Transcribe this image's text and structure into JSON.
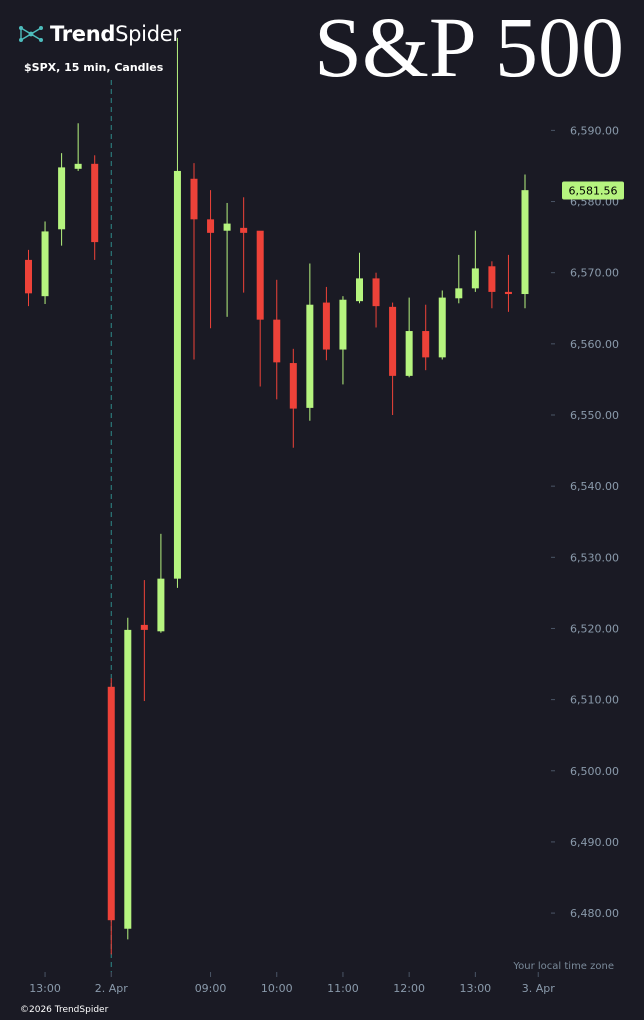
{
  "brand": {
    "name_bold": "Trend",
    "name_regular": "Spider",
    "logo_icon": "trendspider-network-icon"
  },
  "title": "S&P 500",
  "subtitle": "$SPX, 15 min, Candles",
  "local_time_zone_note": "Your local time zone",
  "copyright": "©2026 TrendSpider",
  "colors": {
    "background": "#1a1a24",
    "up": "#b6f47f",
    "down": "#ee4239",
    "axis_text": "#8a9aab",
    "session_line": "#2e8a8a"
  },
  "chart_data": {
    "type": "candlestick",
    "ticker": "$SPX",
    "interval": "15 min",
    "ylim": [
      6472,
      6602
    ],
    "y_ticks": [
      {
        "value": 6590,
        "label": "6,590.00"
      },
      {
        "value": 6580,
        "label": "6,580.00"
      },
      {
        "value": 6570,
        "label": "6,570.00"
      },
      {
        "value": 6560,
        "label": "6,560.00"
      },
      {
        "value": 6550,
        "label": "6,550.00"
      },
      {
        "value": 6540,
        "label": "6,540.00"
      },
      {
        "value": 6530,
        "label": "6,530.00"
      },
      {
        "value": 6520,
        "label": "6,520.00"
      },
      {
        "value": 6510,
        "label": "6,510.00"
      },
      {
        "value": 6500,
        "label": "6,500.00"
      },
      {
        "value": 6490,
        "label": "6,490.00"
      },
      {
        "value": 6480,
        "label": "6,480.00"
      }
    ],
    "x_ticks": [
      {
        "index": 1,
        "label": "13:00"
      },
      {
        "index": 5,
        "label": "2. Apr"
      },
      {
        "index": 11,
        "label": "09:00"
      },
      {
        "index": 15,
        "label": "10:00"
      },
      {
        "index": 19,
        "label": "11:00"
      },
      {
        "index": 23,
        "label": "12:00"
      },
      {
        "index": 27,
        "label": "13:00"
      },
      {
        "index": 30.8,
        "label": "3. Apr"
      }
    ],
    "session_break_index": 5,
    "last_price": {
      "value": 6581.56,
      "label": "6,581.56"
    },
    "candles": [
      {
        "o": 6571.8,
        "h": 6573.2,
        "l": 6565.3,
        "c": 6567.1
      },
      {
        "o": 6566.7,
        "h": 6577.2,
        "l": 6565.6,
        "c": 6575.8
      },
      {
        "o": 6576.1,
        "h": 6586.8,
        "l": 6573.8,
        "c": 6584.8
      },
      {
        "o": 6584.6,
        "h": 6591.0,
        "l": 6584.3,
        "c": 6585.3
      },
      {
        "o": 6585.3,
        "h": 6586.5,
        "l": 6571.8,
        "c": 6574.3
      },
      {
        "o": 6511.8,
        "h": 6513.0,
        "l": 6474.2,
        "c": 6479.0
      },
      {
        "o": 6477.8,
        "h": 6521.5,
        "l": 6476.3,
        "c": 6519.8
      },
      {
        "o": 6520.5,
        "h": 6526.8,
        "l": 6509.8,
        "c": 6519.8
      },
      {
        "o": 6519.6,
        "h": 6533.3,
        "l": 6519.4,
        "c": 6527.0
      },
      {
        "o": 6527.0,
        "h": 6603.0,
        "l": 6525.7,
        "c": 6584.3
      },
      {
        "o": 6583.2,
        "h": 6585.4,
        "l": 6557.8,
        "c": 6577.5
      },
      {
        "o": 6577.5,
        "h": 6581.6,
        "l": 6562.2,
        "c": 6575.6
      },
      {
        "o": 6575.9,
        "h": 6579.8,
        "l": 6563.8,
        "c": 6576.9
      },
      {
        "o": 6576.3,
        "h": 6580.6,
        "l": 6567.2,
        "c": 6575.6
      },
      {
        "o": 6575.9,
        "h": 6575.8,
        "l": 6554.0,
        "c": 6563.4
      },
      {
        "o": 6563.4,
        "h": 6569.0,
        "l": 6552.2,
        "c": 6557.4
      },
      {
        "o": 6557.3,
        "h": 6559.3,
        "l": 6545.4,
        "c": 6550.9
      },
      {
        "o": 6551.0,
        "h": 6571.3,
        "l": 6549.2,
        "c": 6565.5
      },
      {
        "o": 6565.8,
        "h": 6568.0,
        "l": 6557.7,
        "c": 6559.2
      },
      {
        "o": 6559.2,
        "h": 6566.7,
        "l": 6554.3,
        "c": 6566.2
      },
      {
        "o": 6566.0,
        "h": 6572.8,
        "l": 6565.7,
        "c": 6569.2
      },
      {
        "o": 6569.2,
        "h": 6570.0,
        "l": 6562.3,
        "c": 6565.3
      },
      {
        "o": 6565.2,
        "h": 6565.8,
        "l": 6550.0,
        "c": 6555.5
      },
      {
        "o": 6555.5,
        "h": 6566.5,
        "l": 6555.3,
        "c": 6561.8
      },
      {
        "o": 6561.8,
        "h": 6565.5,
        "l": 6556.3,
        "c": 6558.1
      },
      {
        "o": 6558.1,
        "h": 6567.5,
        "l": 6557.8,
        "c": 6566.5
      },
      {
        "o": 6566.4,
        "h": 6572.5,
        "l": 6565.7,
        "c": 6567.8
      },
      {
        "o": 6567.8,
        "h": 6575.9,
        "l": 6567.3,
        "c": 6570.6
      },
      {
        "o": 6570.9,
        "h": 6571.6,
        "l": 6565.0,
        "c": 6567.3
      },
      {
        "o": 6567.3,
        "h": 6572.5,
        "l": 6564.5,
        "c": 6567.0
      },
      {
        "o": 6567.0,
        "h": 6583.8,
        "l": 6565.0,
        "c": 6581.6
      }
    ]
  }
}
